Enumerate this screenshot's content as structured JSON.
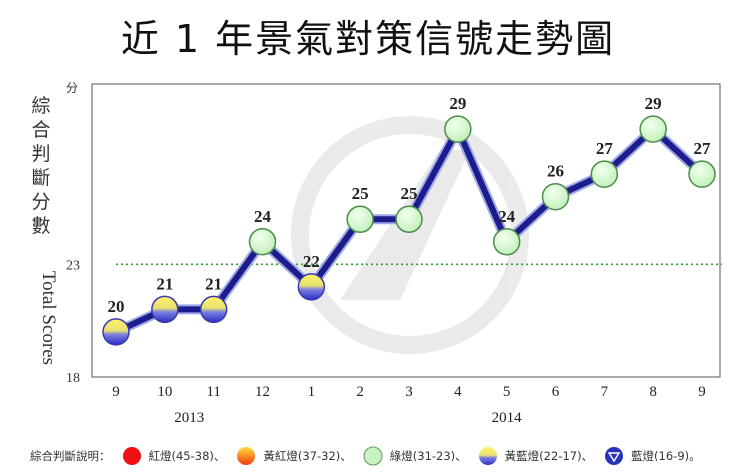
{
  "title": "近 1 年景氣對策信號走勢圖",
  "chart_data": {
    "type": "line",
    "ylabel_cn": "綜\n合\n判\n斷\n分\n數",
    "ylabel_en": "Total Scores",
    "y_unit": "分",
    "ylim": [
      18,
      31
    ],
    "yticks": [
      23,
      18
    ],
    "threshold_line": 23,
    "categories": [
      "9",
      "10",
      "11",
      "12",
      "1",
      "2",
      "3",
      "4",
      "5",
      "6",
      "7",
      "8",
      "9"
    ],
    "year_labels": [
      {
        "label": "2013",
        "start_index": 0,
        "end_index": 3
      },
      {
        "label": "2014",
        "start_index": 4,
        "end_index": 12
      }
    ],
    "series": [
      {
        "values": [
          20,
          21,
          21,
          24,
          22,
          25,
          25,
          29,
          24,
          26,
          27,
          29,
          27
        ],
        "signals": [
          "yellow-blue",
          "yellow-blue",
          "yellow-blue",
          "green",
          "yellow-blue",
          "green",
          "green",
          "green",
          "green",
          "green",
          "green",
          "green",
          "green"
        ]
      }
    ],
    "line_color": "#1c1c8c",
    "threshold_color": "#2e9e2e"
  },
  "legend": {
    "title": "綜合判斷說明：",
    "items": [
      {
        "label": "紅燈(45-38)、",
        "icon": "red-light-icon",
        "color": "#ee1111"
      },
      {
        "label": "黃紅燈(37-32)、",
        "icon": "yellow-red-light-icon",
        "color": "#f59a12"
      },
      {
        "label": "綠燈(31-23)、",
        "icon": "green-light-icon",
        "color": "#c9f2c3"
      },
      {
        "label": "黃藍燈(22-17)、",
        "icon": "yellow-blue-light-icon",
        "color": "#f2e84a"
      },
      {
        "label": "藍燈(16-9)。",
        "icon": "blue-light-icon",
        "color": "#2632b8"
      }
    ]
  }
}
